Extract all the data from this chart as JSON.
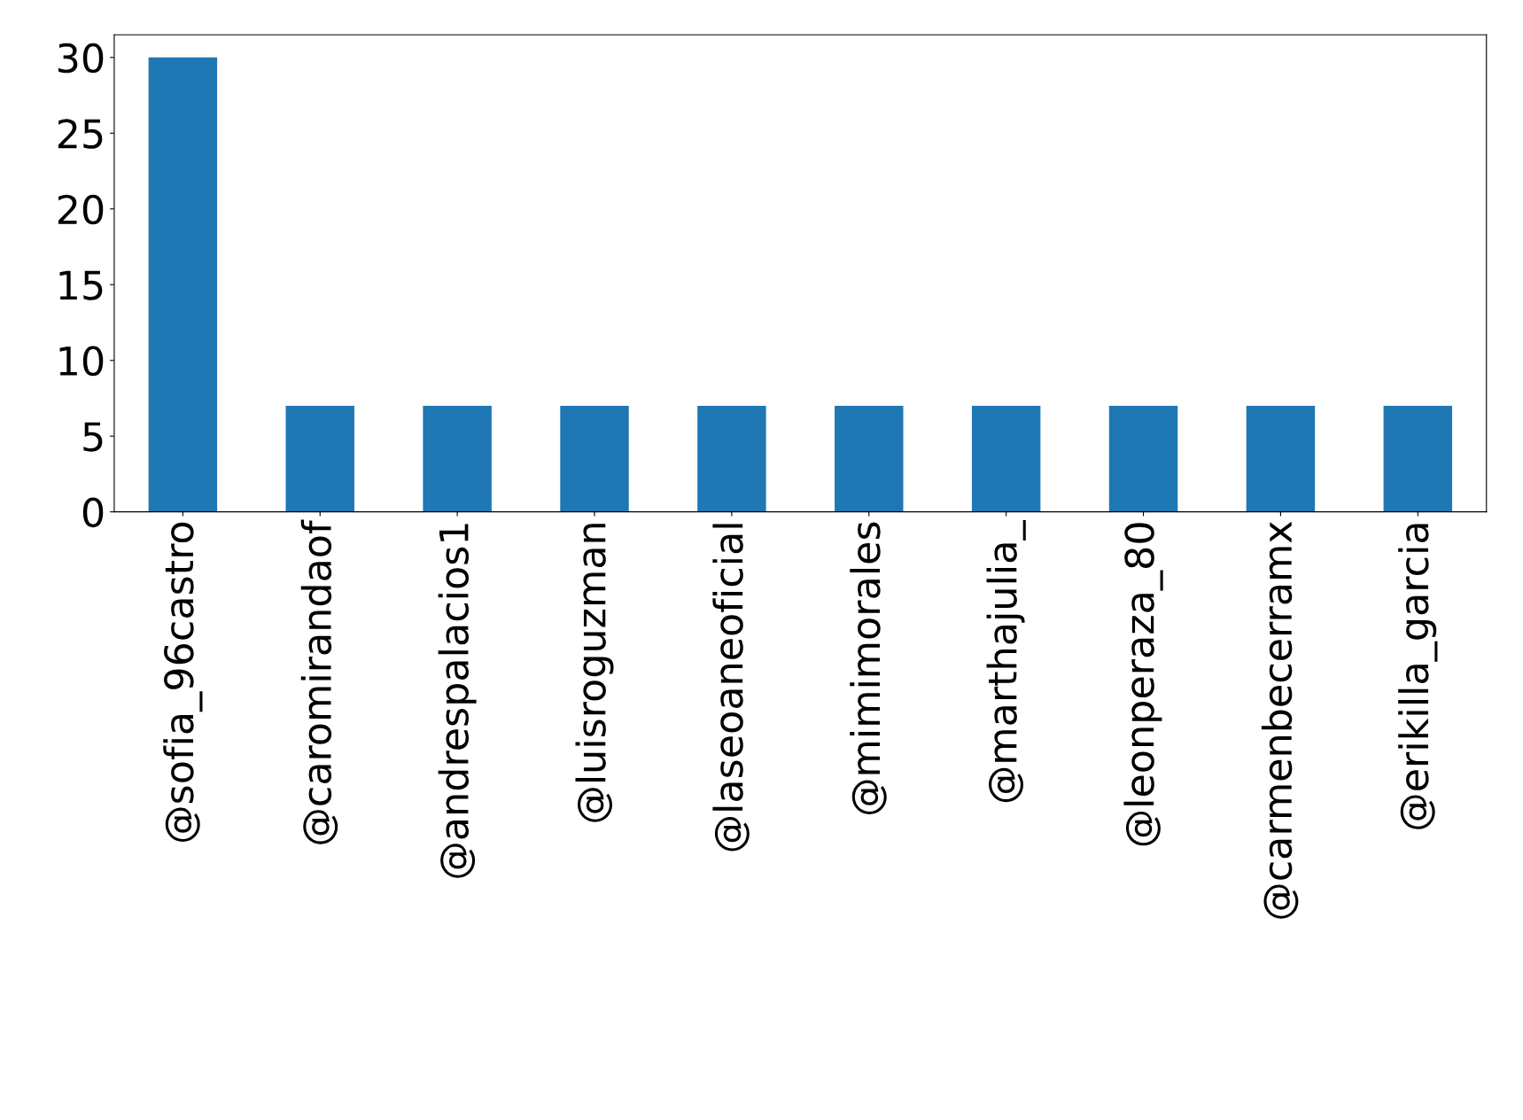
{
  "chart_data": {
    "type": "bar",
    "categories": [
      "@sofia_96castro",
      "@caromirandaof",
      "@andrespalacios1",
      "@luisroguzman",
      "@laseoaneoficial",
      "@mimimorales",
      "@marthajulia_",
      "@leonperaza_80",
      "@carmenbecerramx",
      "@erikilla_garcia"
    ],
    "values": [
      30,
      7,
      7,
      7,
      7,
      7,
      7,
      7,
      7,
      7
    ],
    "color": "#1f77b4",
    "ylim": [
      0,
      31.5
    ],
    "yticks": [
      0,
      5,
      10,
      15,
      20,
      25,
      30
    ],
    "grid": false,
    "legend": false
  }
}
